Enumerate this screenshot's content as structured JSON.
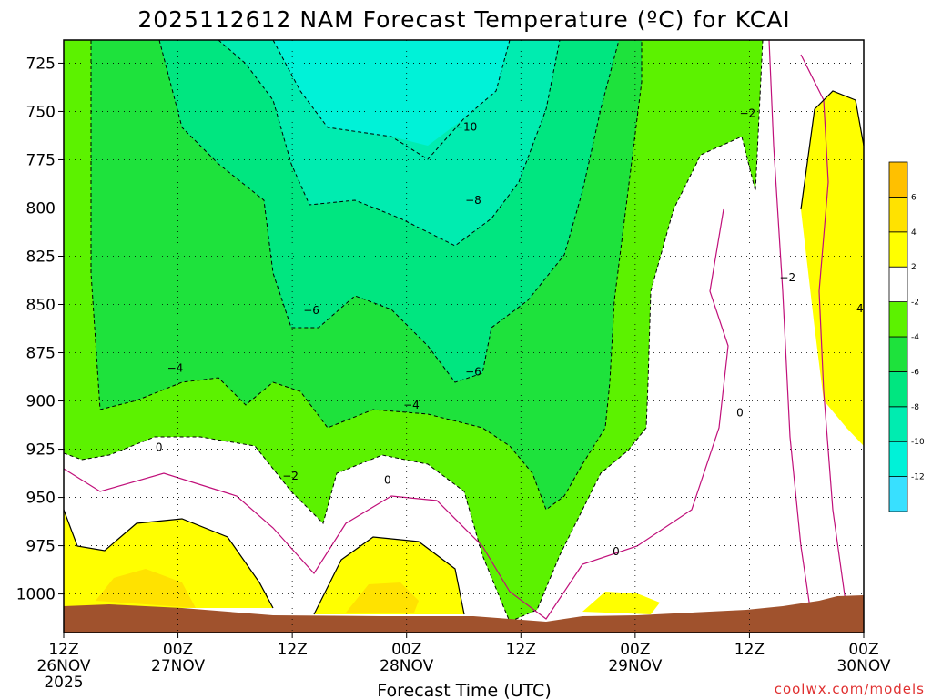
{
  "chart_data": {
    "type": "heatmap",
    "title": "2025112612 NAM Forecast Temperature (ºC) for KCAI",
    "xlabel": "Forecast Time (UTC)",
    "ylabel": "",
    "y_scale": "pressure (hPa)",
    "ylim": [
      1020,
      713
    ],
    "y_ticks": [
      725,
      750,
      775,
      800,
      825,
      850,
      875,
      900,
      925,
      950,
      975,
      1000
    ],
    "x_range_hours": [
      0,
      84
    ],
    "x_ticks": [
      {
        "hour": 0,
        "label1": "12Z",
        "label2": "26NOV",
        "label3": "2025"
      },
      {
        "hour": 12,
        "label1": "00Z",
        "label2": "27NOV",
        "label3": ""
      },
      {
        "hour": 24,
        "label1": "12Z",
        "label2": "",
        "label3": ""
      },
      {
        "hour": 36,
        "label1": "00Z",
        "label2": "28NOV",
        "label3": ""
      },
      {
        "hour": 48,
        "label1": "12Z",
        "label2": "",
        "label3": ""
      },
      {
        "hour": 60,
        "label1": "00Z",
        "label2": "29NOV",
        "label3": ""
      },
      {
        "hour": 72,
        "label1": "12Z",
        "label2": "",
        "label3": ""
      },
      {
        "hour": 84,
        "label1": "00Z",
        "label2": "30NOV",
        "label3": ""
      }
    ],
    "colorbar": {
      "bands": [
        {
          "min": -14,
          "max": -12,
          "color": "#38e0ff"
        },
        {
          "min": -12,
          "max": -10,
          "color": "#00f2d8"
        },
        {
          "min": -10,
          "max": -8,
          "color": "#00ecb0"
        },
        {
          "min": -8,
          "max": -6,
          "color": "#00e680"
        },
        {
          "min": -6,
          "max": -4,
          "color": "#1ee23c"
        },
        {
          "min": -4,
          "max": -2,
          "color": "#5cf200"
        },
        {
          "min": -2,
          "max": 2,
          "color": "#ffffff"
        },
        {
          "min": 2,
          "max": 4,
          "color": "#ffff00"
        },
        {
          "min": 4,
          "max": 6,
          "color": "#ffe200"
        },
        {
          "min": 6,
          "max": 8,
          "color": "#ffc000"
        }
      ],
      "labels": [
        "-12",
        "-10",
        "-8",
        "-6",
        "-4",
        "-2",
        "2",
        "4",
        "6"
      ]
    },
    "contour_labels": [
      {
        "text": "−10",
        "hour": 42.2,
        "p": 758
      },
      {
        "text": "−8",
        "hour": 43.0,
        "p": 796
      },
      {
        "text": "−6",
        "hour": 26.0,
        "p": 853
      },
      {
        "text": "−6",
        "hour": 43.0,
        "p": 885
      },
      {
        "text": "−4",
        "hour": 11.7,
        "p": 883
      },
      {
        "text": "−4",
        "hour": 36.5,
        "p": 902
      },
      {
        "text": "−2",
        "hour": 71.8,
        "p": 751
      },
      {
        "text": "−2",
        "hour": 76.0,
        "p": 836
      },
      {
        "text": "−2",
        "hour": 23.8,
        "p": 939
      },
      {
        "text": "0",
        "hour": 10.0,
        "p": 924
      },
      {
        "text": "0",
        "hour": 34.0,
        "p": 941
      },
      {
        "text": "0",
        "hour": 58.0,
        "p": 978
      },
      {
        "text": "0",
        "hour": 71.0,
        "p": 906
      },
      {
        "text": "4",
        "hour": 83.6,
        "p": 852
      }
    ],
    "colors": {
      "terrain": "#a0522d",
      "zero_contour": "#c0107a",
      "contour": "#000000",
      "watermark": "#e03030"
    }
  },
  "watermark": "coolwx.com/models"
}
